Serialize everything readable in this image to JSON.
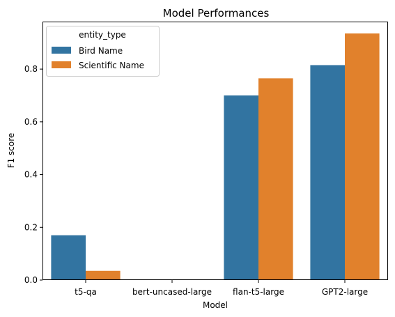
{
  "chart_data": {
    "type": "bar",
    "title": "Model Performances",
    "xlabel": "Model",
    "ylabel": "F1 score",
    "categories": [
      "t5-qa",
      "bert-uncased-large",
      "flan-t5-large",
      "GPT2-large"
    ],
    "series": [
      {
        "name": "Bird Name",
        "color": "#3274a1",
        "values": [
          0.17,
          0.0,
          0.7,
          0.815
        ]
      },
      {
        "name": "Scientific Name",
        "color": "#e1812c",
        "values": [
          0.035,
          0.0,
          0.765,
          0.935
        ]
      }
    ],
    "ylim": [
      0,
      0.98
    ],
    "yticks": [
      0.0,
      0.2,
      0.4,
      0.6,
      0.8
    ],
    "ytick_labels": [
      "0.0",
      "0.2",
      "0.4",
      "0.6",
      "0.8"
    ],
    "grid": false,
    "legend": {
      "title": "entity_type",
      "placement": "top-left"
    }
  }
}
